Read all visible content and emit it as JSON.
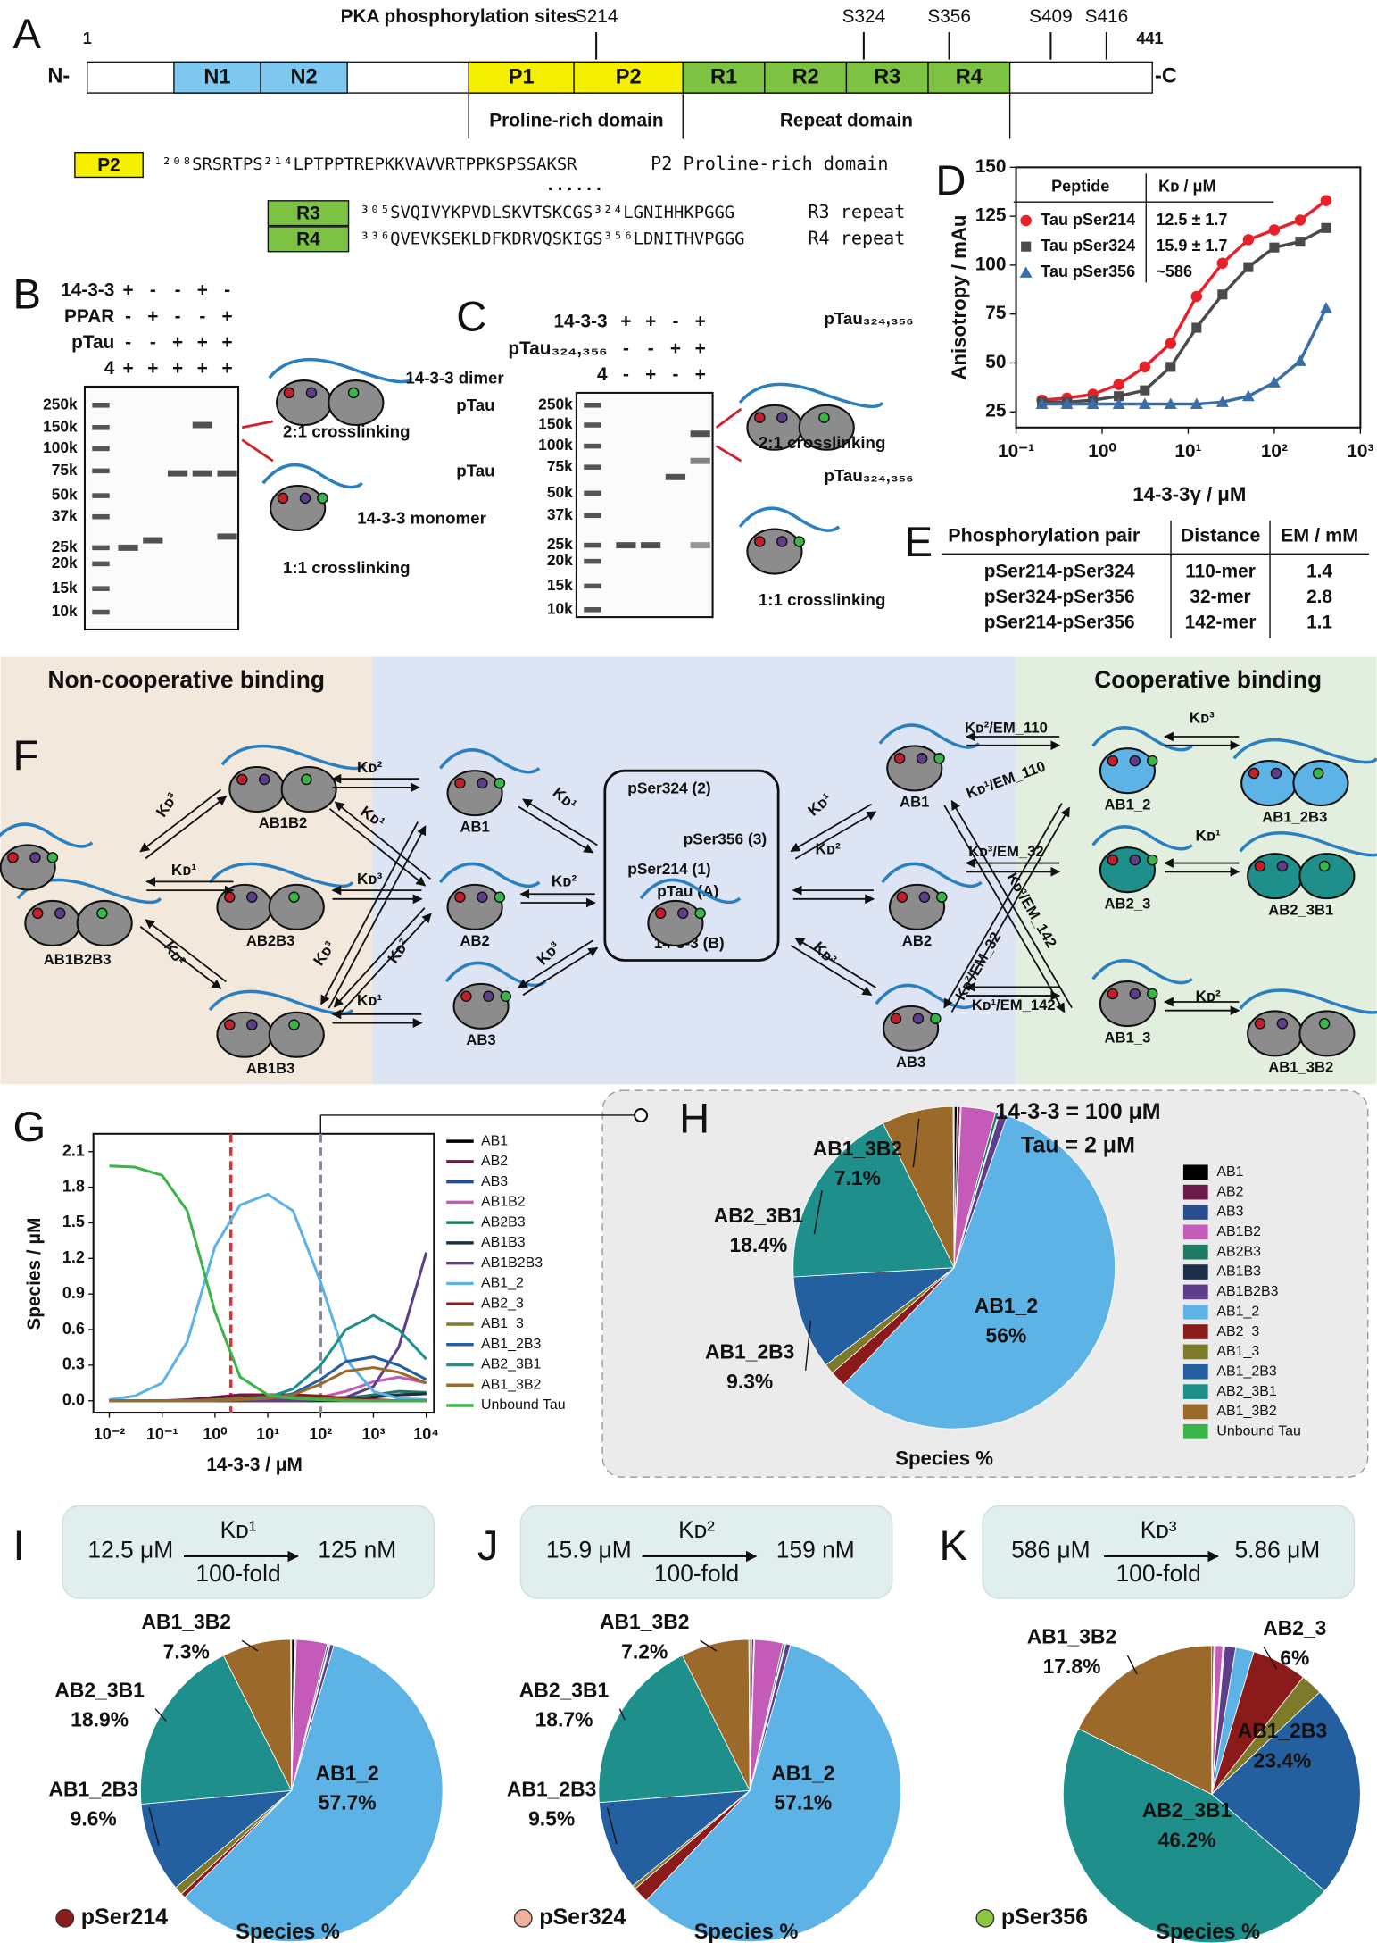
{
  "panel_letters": [
    "A",
    "B",
    "C",
    "D",
    "E",
    "F",
    "G",
    "H",
    "I",
    "J",
    "K"
  ],
  "panel_a": {
    "title": "PKA phosphorylation sites",
    "start": "1",
    "end": "441",
    "n_term": "N-",
    "c_term": "-C",
    "sites": [
      "S214",
      "S324",
      "S356",
      "S409",
      "S416"
    ],
    "domains": [
      "N1",
      "N2",
      "P1",
      "P2",
      "R1",
      "R2",
      "R3",
      "R4"
    ],
    "regions": [
      "Proline-rich domain",
      "Repeat domain"
    ],
    "sequences": [
      {
        "tag": "P2",
        "text": "²⁰⁸SRSRTPS²¹⁴LPTPPTREPKKVAVVRTPPKSPSSAKSR",
        "note": "P2 Proline-rich domain"
      },
      {
        "tag": "R3",
        "text": "³⁰⁵SVQIVYKPVDLSKVTSKCGS³²⁴LGNIHHKPGGG",
        "note": "R3 repeat"
      },
      {
        "tag": "R4",
        "text": "³³⁶QVEVKSEKLDFKDRVQSKIGS³⁵⁶LDNITHVPGGG",
        "note": "R4 repeat"
      }
    ],
    "dots": "......"
  },
  "panel_b": {
    "rows": [
      "14-3-3",
      "PPAR",
      "pTau",
      "4"
    ],
    "signs": [
      [
        "+",
        "-",
        "-",
        "+",
        "-"
      ],
      [
        "-",
        "+",
        "-",
        "-",
        "+"
      ],
      [
        "-",
        "-",
        "+",
        "+",
        "+"
      ],
      [
        "+",
        "+",
        "+",
        "+",
        "+"
      ]
    ],
    "markers": [
      "250k",
      "150k",
      "100k",
      "75k",
      "50k",
      "37k",
      "25k",
      "20k",
      "15k",
      "10k"
    ],
    "cartoon_labels": [
      "pTau",
      "14-3-3 dimer",
      "2:1 crosslinking",
      "pTau",
      "14-3-3 monomer",
      "1:1 crosslinking"
    ]
  },
  "panel_c": {
    "rows": [
      "14-3-3",
      "pTau₃₂₄,₃₅₆",
      "4"
    ],
    "signs": [
      [
        "+",
        "+",
        "-",
        "+"
      ],
      [
        "-",
        "-",
        "+",
        "+"
      ],
      [
        "-",
        "+",
        "-",
        "+"
      ]
    ],
    "markers": [
      "250k",
      "150k",
      "100k",
      "75k",
      "50k",
      "37k",
      "25k",
      "20k",
      "15k",
      "10k"
    ],
    "cartoon_labels": [
      "pTau₃₂₄,₃₅₆",
      "2:1 crosslinking",
      "pTau₃₂₄,₃₅₆",
      "1:1 crosslinking"
    ]
  },
  "panel_e": {
    "headers": [
      "Phosphorylation pair",
      "Distance",
      "EM / mM"
    ],
    "rows": [
      [
        "pSer214-pSer324",
        "110-mer",
        "1.4"
      ],
      [
        "pSer324-pSer356",
        "32-mer",
        "2.8"
      ],
      [
        "pSer214-pSer356",
        "142-mer",
        "1.1"
      ]
    ]
  },
  "panel_f": {
    "titles": [
      "Non-cooperative binding",
      "Cooperative binding"
    ],
    "nodes": [
      "AB1B2B3",
      "AB1B2",
      "AB2B3",
      "AB1B3",
      "AB1",
      "AB2",
      "AB3",
      "AB1",
      "AB2",
      "AB3",
      "AB1_2",
      "AB1_2B3",
      "AB2_3",
      "AB2_3B1",
      "AB1_3",
      "AB1_3B2"
    ],
    "center": [
      "pSer324 (2)",
      "pSer356 (3)",
      "pSer214 (1)",
      "pTau (A)",
      "+",
      "14-3-3 (B)"
    ],
    "rates": [
      "Kᴅ³",
      "Kᴅ¹",
      "Kᴅ²",
      "Kᴅ²",
      "Kᴅ¹",
      "Kᴅ³",
      "Kᴅ³",
      "Kᴅ²",
      "Kᴅ¹",
      "Kᴅ¹",
      "Kᴅ²",
      "Kᴅ³",
      "Kᴅ¹",
      "Kᴅ²",
      "Kᴅ³",
      "Kᴅ²/EM_110",
      "Kᴅ¹/EM_110",
      "Kᴅ³/EM_32",
      "Kᴅ³/EM_142",
      "Kᴅ²/EM_32",
      "Kᴅ¹/EM_142",
      "Kᴅ³",
      "Kᴅ¹",
      "Kᴅ²"
    ]
  },
  "chart_data": [
    {
      "type": "scatter",
      "xlabel": "14-3-3γ / μM",
      "ylabel": "Anisotropy / mAu",
      "log_x": true,
      "xlim": [
        0.1,
        1000
      ],
      "ylim": [
        17,
        150
      ],
      "xticks": [
        {
          "value": 0.1,
          "label": "10⁻¹"
        },
        {
          "value": 1,
          "label": "10⁰"
        },
        {
          "value": 10,
          "label": "10¹"
        },
        {
          "value": 100,
          "label": "10²"
        },
        {
          "value": 1000,
          "label": "10³"
        }
      ],
      "yticks": [
        25,
        50,
        75,
        100,
        125,
        150
      ],
      "table_headers": [
        "Peptide",
        "Kᴅ / μM"
      ],
      "x": [
        0.2,
        0.39,
        0.78,
        1.56,
        3.13,
        6.25,
        12.5,
        25,
        50,
        100,
        200,
        400
      ],
      "series": [
        {
          "name": "Tau pSer214",
          "color": "#e8202a",
          "marker": "circle",
          "kd": "12.5 ± 1.7",
          "values": [
            31,
            32,
            34,
            39,
            48,
            60,
            84,
            101,
            113,
            118,
            123,
            133
          ]
        },
        {
          "name": "Tau pSer324",
          "color": "#4a4a4a",
          "marker": "square",
          "kd": "15.9 ± 1.7",
          "values": [
            30,
            30,
            31,
            33,
            36,
            48,
            68,
            85,
            99,
            109,
            112,
            119
          ]
        },
        {
          "name": "Tau pSer356",
          "color": "#3a6ea8",
          "marker": "triangle",
          "kd": "~586",
          "values": [
            29,
            29,
            29,
            29,
            29,
            29,
            29,
            30,
            33,
            40,
            51,
            78
          ]
        }
      ]
    },
    {
      "type": "line",
      "xlabel": "14-3-3 / μM",
      "ylabel": "Species / μM",
      "log_x": true,
      "xlim": [
        0.005,
        14000
      ],
      "ylim": [
        -0.1,
        2.25
      ],
      "xticks": [
        {
          "value": 0.01,
          "label": "10⁻²"
        },
        {
          "value": 0.1,
          "label": "10⁻¹"
        },
        {
          "value": 1,
          "label": "10⁰"
        },
        {
          "value": 10,
          "label": "10¹"
        },
        {
          "value": 100,
          "label": "10²"
        },
        {
          "value": 1000,
          "label": "10³"
        },
        {
          "value": 10000,
          "label": "10⁴"
        }
      ],
      "yticks": [
        {
          "value": 0,
          "label": "0.0"
        },
        0.3,
        0.6,
        0.9,
        1.2,
        1.5,
        1.8,
        2.1
      ],
      "reference_lines": [
        {
          "x": 2,
          "color": "#e0302f"
        },
        {
          "x": 100,
          "color": "#8a8a9a"
        }
      ],
      "x": [
        0.01,
        0.03,
        0.1,
        0.3,
        1,
        3,
        10,
        30,
        100,
        300,
        1000,
        3000,
        10000
      ],
      "series": [
        {
          "name": "AB1",
          "color": "#000000",
          "values": [
            0,
            0,
            0,
            0,
            0,
            0,
            0,
            0,
            0,
            0,
            0,
            0,
            0
          ]
        },
        {
          "name": "AB2",
          "color": "#6d1a4a",
          "values": [
            0,
            0,
            0,
            0.01,
            0.03,
            0.05,
            0.05,
            0.04,
            0.03,
            0.01,
            0,
            0,
            0
          ]
        },
        {
          "name": "AB3",
          "color": "#2a4d8f",
          "values": [
            0,
            0,
            0,
            0,
            0,
            0,
            0.01,
            0.01,
            0.02,
            0.03,
            0.04,
            0.05,
            0.06
          ]
        },
        {
          "name": "AB1B2",
          "color": "#c55bb8",
          "values": [
            0,
            0,
            0,
            0,
            0,
            0,
            0,
            0.01,
            0.03,
            0.08,
            0.16,
            0.2,
            0.15
          ]
        },
        {
          "name": "AB2B3",
          "color": "#1e7a62",
          "values": [
            0,
            0,
            0,
            0,
            0,
            0,
            0,
            0,
            0.01,
            0.02,
            0.05,
            0.08,
            0.07
          ]
        },
        {
          "name": "AB1B3",
          "color": "#1b2f4a",
          "values": [
            0,
            0,
            0,
            0,
            0,
            0,
            0,
            0,
            0,
            0.01,
            0.03,
            0.05,
            0.06
          ]
        },
        {
          "name": "AB1B2B3",
          "color": "#5e3e8a",
          "values": [
            0,
            0,
            0,
            0,
            0,
            0,
            0,
            0,
            0.01,
            0.03,
            0.12,
            0.45,
            1.25
          ]
        },
        {
          "name": "AB1_2",
          "color": "#5db3e6",
          "values": [
            0.01,
            0.04,
            0.15,
            0.5,
            1.3,
            1.65,
            1.74,
            1.6,
            1.0,
            0.35,
            0.08,
            0.02,
            0.01
          ]
        },
        {
          "name": "AB2_3",
          "color": "#8b1a1a",
          "values": [
            0,
            0,
            0,
            0,
            0.01,
            0.03,
            0.05,
            0.05,
            0.04,
            0.02,
            0.01,
            0,
            0
          ]
        },
        {
          "name": "AB1_3",
          "color": "#7d7a2a",
          "values": [
            0,
            0,
            0,
            0,
            0.01,
            0.02,
            0.03,
            0.03,
            0.02,
            0.01,
            0,
            0,
            0
          ]
        },
        {
          "name": "AB1_2B3",
          "color": "#245fa0",
          "values": [
            0,
            0,
            0,
            0,
            0,
            0.01,
            0.02,
            0.06,
            0.18,
            0.33,
            0.37,
            0.3,
            0.18
          ]
        },
        {
          "name": "AB2_3B1",
          "color": "#1e8f8a",
          "values": [
            0,
            0,
            0,
            0,
            0,
            0.01,
            0.03,
            0.1,
            0.3,
            0.6,
            0.72,
            0.6,
            0.35
          ]
        },
        {
          "name": "AB1_3B2",
          "color": "#9b6a2a",
          "values": [
            0,
            0,
            0,
            0,
            0,
            0.01,
            0.02,
            0.05,
            0.14,
            0.25,
            0.28,
            0.24,
            0.15
          ]
        },
        {
          "name": "Unbound Tau",
          "color": "#3bb54a",
          "values": [
            1.98,
            1.97,
            1.9,
            1.6,
            0.75,
            0.2,
            0.05,
            0.02,
            0.01,
            0,
            0,
            0,
            0
          ]
        }
      ]
    },
    {
      "type": "pie",
      "subtitle_lines": [
        "14-3-3 = 100 μM",
        "Tau = 2 μM"
      ],
      "xlabel": "Species %",
      "categories": [
        "AB1",
        "AB2",
        "AB3",
        "AB1B2",
        "AB2B3",
        "AB1B3",
        "AB1B2B3",
        "AB1_2",
        "AB2_3",
        "AB1_3",
        "AB1_2B3",
        "AB2_3B1",
        "AB1_3B2",
        "Unbound Tau"
      ],
      "colors": [
        "#000000",
        "#6d1a4a",
        "#2a4d8f",
        "#c55bb8",
        "#1e7a62",
        "#1b2f4a",
        "#5e3e8a",
        "#5db3e6",
        "#8b1a1a",
        "#7d7a2a",
        "#245fa0",
        "#1e8f8a",
        "#9b6a2a",
        "#3bb54a"
      ],
      "values": [
        0.3,
        0.3,
        0.1,
        3.4,
        0.3,
        0.1,
        0.8,
        56,
        1.6,
        1.0,
        9.3,
        18.4,
        7.1,
        0.1
      ],
      "value_labels": [
        null,
        null,
        null,
        null,
        null,
        null,
        null,
        "56%",
        null,
        null,
        "9.3%",
        "18.4%",
        "7.1%",
        null
      ]
    },
    {
      "type": "pie",
      "xlabel": "Species %",
      "box": {
        "from": "12.5 μM",
        "k": "Kᴅ¹",
        "to": "125 nM",
        "fold": "100-fold"
      },
      "site": {
        "name": "pSer214",
        "color": "#8b1a1a"
      },
      "categories": [
        null,
        null,
        null,
        null,
        null,
        null,
        null,
        "AB1_2",
        null,
        null,
        "AB1_2B3",
        "AB2_3B1",
        "AB1_3B2",
        null
      ],
      "colors": [
        "#000000",
        "#6d1a4a",
        "#2a4d8f",
        "#c55bb8",
        "#1e7a62",
        "#1b2f4a",
        "#5e3e8a",
        "#5db3e6",
        "#8b1a1a",
        "#7d7a2a",
        "#245fa0",
        "#1e8f8a",
        "#9b6a2a",
        "#3bb54a"
      ],
      "values": [
        0.3,
        0.1,
        0.1,
        3.3,
        0.2,
        0.1,
        0.4,
        57.7,
        0.5,
        0.9,
        9.6,
        18.9,
        7.3,
        0.1
      ],
      "value_labels": [
        null,
        null,
        null,
        null,
        null,
        null,
        null,
        "57.7%",
        null,
        null,
        "9.6%",
        "18.9%",
        "7.3%",
        null
      ]
    },
    {
      "type": "pie",
      "xlabel": "Species %",
      "box": {
        "from": "15.9 μM",
        "k": "Kᴅ²",
        "to": "159 nM",
        "fold": "100-fold"
      },
      "site": {
        "name": "pSer324",
        "color": "#f0b0a0"
      },
      "categories": [
        null,
        null,
        null,
        null,
        null,
        null,
        null,
        "AB1_2",
        null,
        null,
        "AB1_2B3",
        "AB2_3B1",
        "AB1_3B2",
        null
      ],
      "colors": [
        "#000000",
        "#6d1a4a",
        "#2a4d8f",
        "#c55bb8",
        "#1e7a62",
        "#1b2f4a",
        "#5e3e8a",
        "#5db3e6",
        "#8b1a1a",
        "#7d7a2a",
        "#245fa0",
        "#1e8f8a",
        "#9b6a2a",
        "#3bb54a"
      ],
      "values": [
        0.2,
        0.2,
        0.1,
        3.0,
        0.2,
        0.1,
        0.5,
        57.1,
        1.7,
        0.4,
        9.5,
        18.7,
        7.2,
        0.1
      ],
      "value_labels": [
        null,
        null,
        null,
        null,
        null,
        null,
        null,
        "57.1%",
        null,
        null,
        "9.5%",
        "18.7%",
        "7.2%",
        null
      ]
    },
    {
      "type": "pie",
      "xlabel": "Species %",
      "box": {
        "from": "586 μM",
        "k": "Kᴅ³",
        "to": "5.86 μM",
        "fold": "100-fold"
      },
      "site": {
        "name": "pSer356",
        "color": "#8dc63f"
      },
      "categories": [
        null,
        null,
        null,
        null,
        null,
        null,
        null,
        null,
        "AB2_3",
        null,
        "AB1_2B3",
        "AB2_3B1",
        "AB1_3B2",
        null
      ],
      "colors": [
        "#000000",
        "#6d1a4a",
        "#2a4d8f",
        "#c55bb8",
        "#1e7a62",
        "#1b2f4a",
        "#5e3e8a",
        "#5db3e6",
        "#8b1a1a",
        "#7d7a2a",
        "#245fa0",
        "#1e8f8a",
        "#9b6a2a",
        "#3bb54a"
      ],
      "values": [
        0.2,
        0.1,
        0.1,
        0.8,
        0.1,
        0.1,
        1.2,
        2.0,
        6,
        2.4,
        23.4,
        46.2,
        17.8,
        0
      ],
      "value_labels": [
        null,
        null,
        null,
        null,
        null,
        null,
        null,
        null,
        "6%",
        null,
        "23.4%",
        "46.2%",
        "17.8%",
        null
      ]
    }
  ]
}
